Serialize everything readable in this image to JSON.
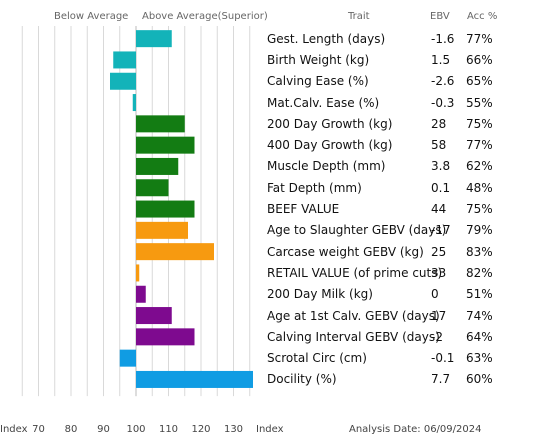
{
  "header": {
    "below_average": "Below Average",
    "above_average": "Above Average(Superior)",
    "trait": "Trait",
    "ebv": "EBV",
    "acc": "Acc %"
  },
  "footer": {
    "index_left": "Index",
    "index_right": "Index",
    "analysis_date": "Analysis Date: 06/09/2024"
  },
  "colors": {
    "teal": "#13b3b9",
    "green": "#137c13",
    "orange": "#f79a10",
    "purple": "#7e0a8f",
    "blue": "#109ce3",
    "grid": "#d9d9d9"
  },
  "chart_data": {
    "type": "bar",
    "orientation": "horizontal",
    "baseline": 100,
    "xlim": [
      60,
      140
    ],
    "xticks": [
      70,
      80,
      90,
      100,
      110,
      120,
      130
    ],
    "traits": [
      {
        "name": "Gest. Length (days)",
        "ebv": "-1.6",
        "acc": "77%",
        "index": 111,
        "color": "teal",
        "bold": false
      },
      {
        "name": "Birth Weight (kg)",
        "ebv": "1.5",
        "acc": "66%",
        "index": 93,
        "color": "teal",
        "bold": false
      },
      {
        "name": "Calving Ease (%)",
        "ebv": "-2.6",
        "acc": "65%",
        "index": 92,
        "color": "teal",
        "bold": false
      },
      {
        "name": "Mat.Calv. Ease (%)",
        "ebv": "-0.3",
        "acc": "55%",
        "index": 99,
        "color": "teal",
        "bold": false
      },
      {
        "name": "200 Day Growth (kg)",
        "ebv": "28",
        "acc": "75%",
        "index": 115,
        "color": "green",
        "bold": false
      },
      {
        "name": "400 Day Growth (kg)",
        "ebv": "58",
        "acc": "77%",
        "index": 118,
        "color": "green",
        "bold": false
      },
      {
        "name": "Muscle Depth (mm)",
        "ebv": "3.8",
        "acc": "62%",
        "index": 113,
        "color": "green",
        "bold": false
      },
      {
        "name": "Fat Depth (mm)",
        "ebv": "0.1",
        "acc": "48%",
        "index": 110,
        "color": "green",
        "bold": false
      },
      {
        "name": "BEEF VALUE",
        "ebv": "44",
        "acc": "75%",
        "index": 118,
        "color": "green",
        "bold": true
      },
      {
        "name": "Age to Slaughter GEBV (days)",
        "ebv": "-17",
        "acc": "79%",
        "index": 116,
        "color": "orange",
        "bold": false
      },
      {
        "name": "Carcase weight GEBV (kg)",
        "ebv": "25",
        "acc": "83%",
        "index": 124,
        "color": "orange",
        "bold": false
      },
      {
        "name": "RETAIL VALUE (of prime cuts)",
        "ebv": "33",
        "acc": "82%",
        "index": 101,
        "color": "orange",
        "bold": true
      },
      {
        "name": "200 Day Milk (kg)",
        "ebv": "0",
        "acc": "51%",
        "index": 103,
        "color": "purple",
        "bold": false
      },
      {
        "name": "Age at 1st Calv. GEBV (days)",
        "ebv": "17",
        "acc": "74%",
        "index": 111,
        "color": "purple",
        "bold": false
      },
      {
        "name": "Calving Interval GEBV (days)",
        "ebv": "-2",
        "acc": "64%",
        "index": 118,
        "color": "purple",
        "bold": false
      },
      {
        "name": "Scrotal Circ (cm)",
        "ebv": "-0.1",
        "acc": "63%",
        "index": 95,
        "color": "blue",
        "bold": false
      },
      {
        "name": "Docility (%)",
        "ebv": "7.7",
        "acc": "60%",
        "index": 136,
        "color": "blue",
        "bold": false
      }
    ]
  }
}
